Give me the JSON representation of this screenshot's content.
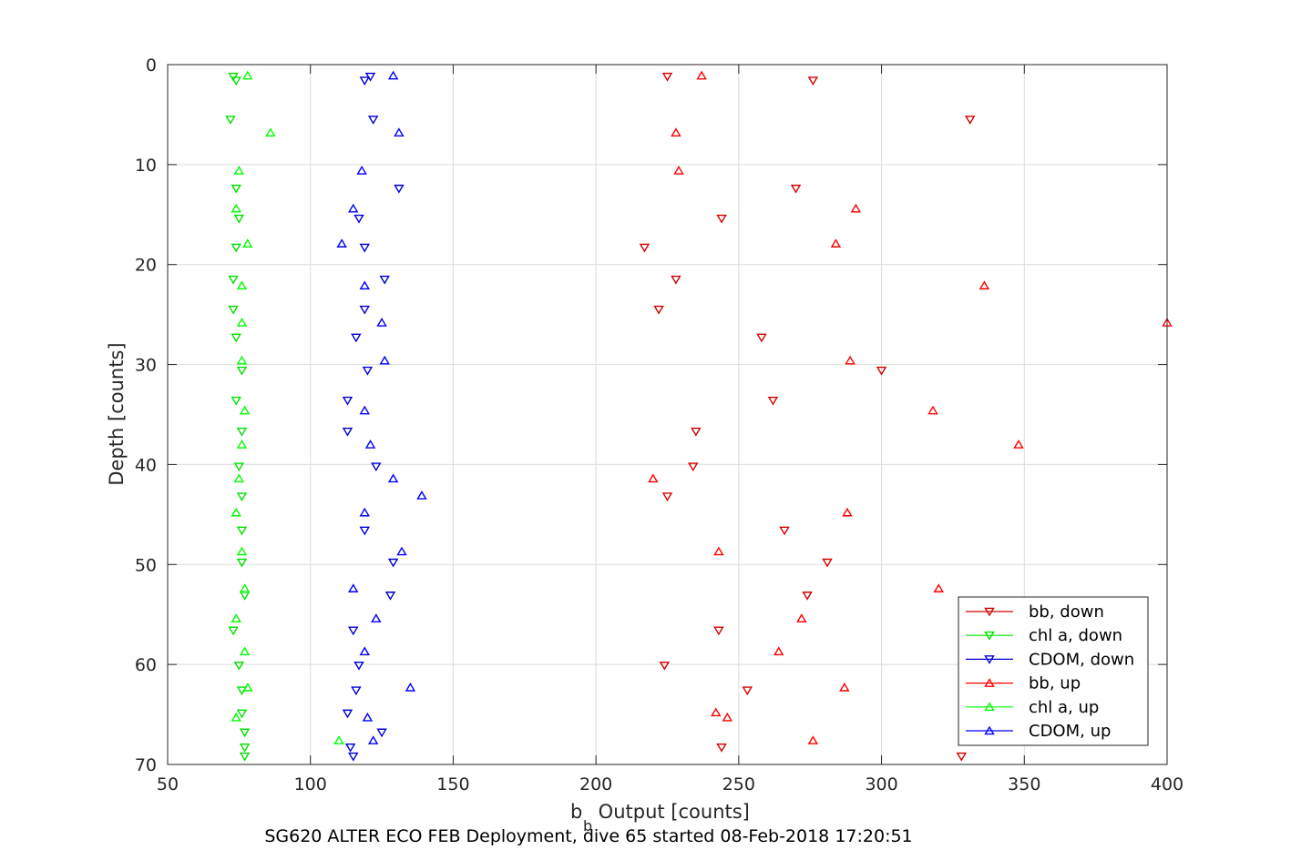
{
  "chart_data": {
    "type": "scatter",
    "xlabel_main": "b",
    "xlabel_sub": "b",
    "xlabel_rest": " Output [counts]",
    "ylabel": "Depth [counts]",
    "caption": "SG620 ALTER ECO FEB Deployment, dive 65 started 08-Feb-2018 17:20:51",
    "xlim": [
      50,
      400
    ],
    "ylim": [
      0,
      70
    ],
    "y_reversed": true,
    "grid": true,
    "legend_position": "bottom-right",
    "x_ticks": [
      "50",
      "100",
      "150",
      "200",
      "250",
      "300",
      "350",
      "400"
    ],
    "y_ticks": [
      "0",
      "10",
      "20",
      "30",
      "40",
      "50",
      "60",
      "70"
    ],
    "series": [
      {
        "name": "bb, down",
        "color": "#d40000",
        "marker": "triangle-down",
        "points": [
          [
            225,
            1.2
          ],
          [
            276,
            1.6
          ],
          [
            331,
            5.5
          ],
          [
            270,
            12.4
          ],
          [
            244,
            15.4
          ],
          [
            217,
            18.3
          ],
          [
            228,
            21.5
          ],
          [
            222,
            24.5
          ],
          [
            258,
            27.3
          ],
          [
            300,
            30.6
          ],
          [
            262,
            33.6
          ],
          [
            235,
            36.7
          ],
          [
            234,
            40.2
          ],
          [
            225,
            43.2
          ],
          [
            266,
            46.6
          ],
          [
            281,
            49.8
          ],
          [
            274,
            53.1
          ],
          [
            243,
            56.6
          ],
          [
            224,
            60.1
          ],
          [
            253,
            62.6
          ],
          [
            244,
            68.3
          ],
          [
            328,
            69.2
          ]
        ]
      },
      {
        "name": "chl a, down",
        "color": "#00e000",
        "marker": "triangle-down",
        "points": [
          [
            73,
            1.2
          ],
          [
            74,
            1.6
          ],
          [
            72,
            5.5
          ],
          [
            74,
            12.4
          ],
          [
            75,
            15.4
          ],
          [
            74,
            18.3
          ],
          [
            73,
            21.5
          ],
          [
            73,
            24.5
          ],
          [
            74,
            27.3
          ],
          [
            76,
            30.6
          ],
          [
            74,
            33.6
          ],
          [
            76,
            36.7
          ],
          [
            75,
            40.2
          ],
          [
            76,
            43.2
          ],
          [
            76,
            46.6
          ],
          [
            76,
            49.8
          ],
          [
            77,
            53.1
          ],
          [
            73,
            56.6
          ],
          [
            75,
            60.1
          ],
          [
            76,
            62.6
          ],
          [
            77,
            68.3
          ],
          [
            77,
            69.2
          ],
          [
            76,
            64.9
          ],
          [
            77,
            66.8
          ]
        ]
      },
      {
        "name": "CDOM, down",
        "color": "#0000d4",
        "marker": "triangle-down",
        "points": [
          [
            121,
            1.2
          ],
          [
            119,
            1.6
          ],
          [
            122,
            5.5
          ],
          [
            131,
            12.4
          ],
          [
            117,
            15.4
          ],
          [
            119,
            18.3
          ],
          [
            126,
            21.5
          ],
          [
            119,
            24.5
          ],
          [
            116,
            27.3
          ],
          [
            120,
            30.6
          ],
          [
            113,
            33.6
          ],
          [
            113,
            36.7
          ],
          [
            123,
            40.2
          ],
          [
            119,
            46.6
          ],
          [
            129,
            49.8
          ],
          [
            128,
            53.1
          ],
          [
            115,
            56.6
          ],
          [
            117,
            60.1
          ],
          [
            116,
            62.6
          ],
          [
            113,
            64.9
          ],
          [
            125,
            66.8
          ],
          [
            114,
            68.3
          ],
          [
            115,
            69.2
          ]
        ]
      },
      {
        "name": "bb, up",
        "color": "#ff0000",
        "marker": "triangle-up",
        "points": [
          [
            237,
            1.1
          ],
          [
            228,
            6.8
          ],
          [
            229,
            10.6
          ],
          [
            291,
            14.4
          ],
          [
            284,
            17.9
          ],
          [
            336,
            22.1
          ],
          [
            400,
            25.8
          ],
          [
            289,
            29.6
          ],
          [
            318,
            34.6
          ],
          [
            348,
            38.0
          ],
          [
            220,
            41.4
          ],
          [
            288,
            44.8
          ],
          [
            243,
            48.7
          ],
          [
            320,
            52.4
          ],
          [
            272,
            55.4
          ],
          [
            264,
            58.7
          ],
          [
            287,
            62.3
          ],
          [
            246,
            65.3
          ],
          [
            242,
            64.8
          ],
          [
            276,
            67.6
          ]
        ]
      },
      {
        "name": "chl a, up",
        "color": "#00ff00",
        "marker": "triangle-up",
        "points": [
          [
            78,
            1.1
          ],
          [
            86,
            6.8
          ],
          [
            75,
            10.6
          ],
          [
            74,
            14.4
          ],
          [
            78,
            17.9
          ],
          [
            76,
            22.1
          ],
          [
            76,
            25.8
          ],
          [
            76,
            29.6
          ],
          [
            77,
            34.6
          ],
          [
            76,
            38.0
          ],
          [
            75,
            41.4
          ],
          [
            74,
            44.8
          ],
          [
            76,
            48.7
          ],
          [
            77,
            52.4
          ],
          [
            74,
            55.4
          ],
          [
            77,
            58.7
          ],
          [
            78,
            62.3
          ],
          [
            74,
            65.3
          ],
          [
            110,
            67.6
          ]
        ]
      },
      {
        "name": "CDOM, up",
        "color": "#0000ff",
        "marker": "triangle-up",
        "points": [
          [
            129,
            1.1
          ],
          [
            131,
            6.8
          ],
          [
            118,
            10.6
          ],
          [
            115,
            14.4
          ],
          [
            111,
            17.9
          ],
          [
            119,
            22.1
          ],
          [
            125,
            25.8
          ],
          [
            126,
            29.6
          ],
          [
            119,
            34.6
          ],
          [
            121,
            38.0
          ],
          [
            129,
            41.4
          ],
          [
            139,
            43.1
          ],
          [
            119,
            44.8
          ],
          [
            132,
            48.7
          ],
          [
            115,
            52.4
          ],
          [
            123,
            55.4
          ],
          [
            119,
            58.7
          ],
          [
            135,
            62.3
          ],
          [
            120,
            65.3
          ],
          [
            122,
            67.6
          ]
        ]
      }
    ]
  }
}
